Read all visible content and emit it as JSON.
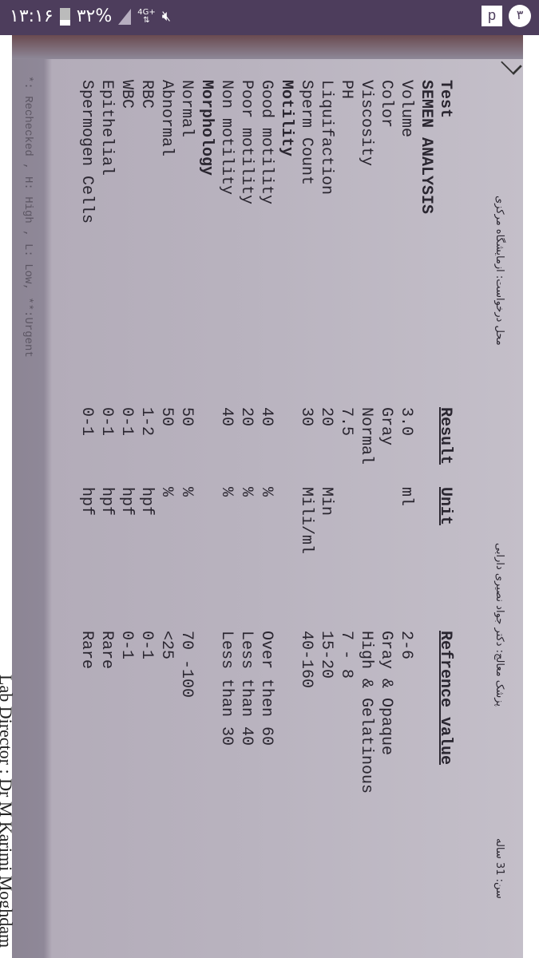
{
  "status_bar": {
    "time": "۱۳:۱۶",
    "battery": "۳۲%",
    "network": "4G+",
    "notification_count": "۳",
    "app_icon_letter": "p"
  },
  "document": {
    "header": {
      "request_location": "محل درخواست: ازمایشگاه مرکزی",
      "doctor": "پزشک معالج: دکتر جواد نصیری دارابی",
      "age": "سن: 31 ساله"
    },
    "columns": {
      "test": "Test",
      "result": "Result",
      "unit": "Unit",
      "reference": "Refrence value"
    },
    "rows": [
      {
        "test": "SEMEN ANALYSIS",
        "result": "",
        "unit": "",
        "ref": "",
        "section": true
      },
      {
        "test": "Volume",
        "result": "3.0",
        "unit": "ml",
        "ref": "2-6"
      },
      {
        "test": "Color",
        "result": "Gray",
        "unit": "",
        "ref": "Gray & Opaque"
      },
      {
        "test": "Viscosity",
        "result": "Normal",
        "unit": "",
        "ref": "High & Gelatinous"
      },
      {
        "test": "PH",
        "result": "7.5",
        "unit": "",
        "ref": "7 - 8"
      },
      {
        "test": "Liquifaction",
        "result": "20",
        "unit": "Min",
        "ref": "15-20"
      },
      {
        "test": "Sperm Count",
        "result": "30",
        "unit": "Mili/ml",
        "ref": "40-160"
      },
      {
        "test": "Motility",
        "result": "",
        "unit": "",
        "ref": "",
        "section": true
      },
      {
        "test": "Good motility",
        "result": "40",
        "unit": "%",
        "ref": "Over then 60"
      },
      {
        "test": "Poor motility",
        "result": "20",
        "unit": "%",
        "ref": "Less than 40"
      },
      {
        "test": "Non motility",
        "result": "40",
        "unit": "%",
        "ref": "Less than 30"
      },
      {
        "test": "Morphology",
        "result": "",
        "unit": "",
        "ref": "",
        "section": true
      },
      {
        "test": "Normal",
        "result": "50",
        "unit": "%",
        "ref": "70 -100"
      },
      {
        "test": "Abnormal",
        "result": "50",
        "unit": "%",
        "ref": "<25"
      },
      {
        "test": "RBC",
        "result": "1-2",
        "unit": "hpf",
        "ref": "0-1"
      },
      {
        "test": "WBC",
        "result": "0-1",
        "unit": "hpf",
        "ref": "0-1"
      },
      {
        "test": "Epithelial",
        "result": "0-1",
        "unit": "hpf",
        "ref": "Rare"
      },
      {
        "test": "Spermogen Cells",
        "result": "0-1",
        "unit": "hpf",
        "ref": "Rare"
      }
    ],
    "footnote": "*: Rechecked , H: High , L: Low, **:Urgent",
    "lab_director": "Lab Director : Dr M Karimi Moghdam"
  }
}
